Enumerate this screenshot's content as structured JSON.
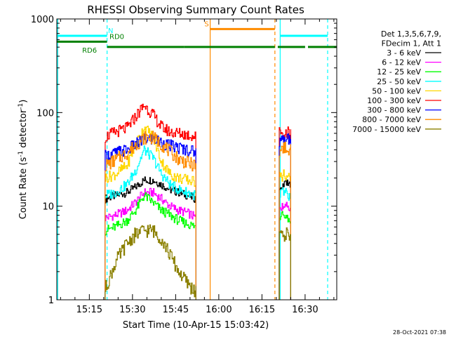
{
  "chart_data": {
    "type": "line",
    "title": "RHESSI Observing Summary Count Rates",
    "xlabel": "Start Time (10-Apr-15 15:03:42)",
    "ylabel": "Count Rate (s",
    "ylabel_sup1": "-1",
    "ylabel_mid": " detector",
    "ylabel_sup2": "-1",
    "ylabel_end": ")",
    "y_scale": "log",
    "xlim": [
      "15:03:42",
      "16:41:00"
    ],
    "ylim": [
      1,
      1000
    ],
    "x_ticks": [
      "15:15",
      "15:30",
      "15:45",
      "16:00",
      "16:15",
      "16:30"
    ],
    "y_ticks": [
      {
        "value": 1,
        "label": "1"
      },
      {
        "value": 10,
        "label": "10"
      },
      {
        "value": 100,
        "label": "100"
      },
      {
        "value": 1000,
        "label": "1000"
      }
    ],
    "legend": {
      "position": "right",
      "header": [
        "Det 1,3,5,6,7,9,",
        "FDecim 1, Att 1"
      ],
      "entries": [
        {
          "label": "3 - 6 keV",
          "color": "#000000"
        },
        {
          "label": "6 - 12 keV",
          "color": "#ff00ff"
        },
        {
          "label": "12 - 25 keV",
          "color": "#00ff00"
        },
        {
          "label": "25 - 50 keV",
          "color": "#00ffff"
        },
        {
          "label": "50 - 100 keV",
          "color": "#ffd700"
        },
        {
          "label": "100 - 300 keV",
          "color": "#ff0000"
        },
        {
          "label": "300 - 800 keV",
          "color": "#0000ff"
        },
        {
          "label": "800 - 7000 keV",
          "color": "#ff8c00"
        },
        {
          "label": "7000 - 15000 keV",
          "color": "#8b8000"
        }
      ]
    },
    "series": [
      {
        "name": "3 - 6 keV",
        "color": "#000000",
        "segments": [
          {
            "x": [
              "15:20:30",
              "15:24",
              "15:28",
              "15:31",
              "15:34",
              "15:37",
              "15:40",
              "15:43",
              "15:46",
              "15:49",
              "15:52"
            ],
            "y": [
              12,
              13,
              14,
              16,
              19,
              19,
              17,
              15,
              14,
              13,
              12
            ]
          },
          {
            "x": [
              "16:21",
              "16:22",
              "16:23",
              "16:24",
              "16:25"
            ],
            "y": [
              15,
              17,
              18,
              17,
              16
            ]
          }
        ]
      },
      {
        "name": "6 - 12 keV",
        "color": "#ff00ff",
        "segments": [
          {
            "x": [
              "15:20:30",
              "15:24",
              "15:28",
              "15:31",
              "15:34",
              "15:37",
              "15:40",
              "15:43",
              "15:46",
              "15:49",
              "15:52"
            ],
            "y": [
              7.5,
              8,
              9,
              11,
              14,
              14,
              12,
              10,
              9,
              8.5,
              7.5
            ]
          },
          {
            "x": [
              "16:21",
              "16:22",
              "16:23",
              "16:24",
              "16:25"
            ],
            "y": [
              9,
              10,
              11,
              10,
              9
            ]
          }
        ]
      },
      {
        "name": "12 - 25 keV",
        "color": "#00ff00",
        "segments": [
          {
            "x": [
              "15:20:30",
              "15:24",
              "15:28",
              "15:31",
              "15:34",
              "15:37",
              "15:40",
              "15:43",
              "15:46",
              "15:49",
              "15:52"
            ],
            "y": [
              5.5,
              6,
              7,
              9,
              13,
              11,
              9,
              8,
              7,
              6.5,
              6
            ]
          },
          {
            "x": [
              "16:21",
              "16:22",
              "16:23",
              "16:24",
              "16:25"
            ],
            "y": [
              7,
              8,
              8,
              7,
              7
            ]
          }
        ]
      },
      {
        "name": "25 - 50 keV",
        "color": "#00ffff",
        "segments": [
          {
            "x": [
              "15:20:30",
              "15:24",
              "15:28",
              "15:31",
              "15:34",
              "15:37",
              "15:40",
              "15:43",
              "15:46",
              "15:49",
              "15:52"
            ],
            "y": [
              13,
              14,
              17,
              24,
              40,
              33,
              22,
              17,
              15,
              14,
              13
            ]
          },
          {
            "x": [
              "16:21",
              "16:22",
              "16:23",
              "16:24",
              "16:25"
            ],
            "y": [
              13,
              14,
              14,
              13,
              12
            ]
          }
        ]
      },
      {
        "name": "50 - 100 keV",
        "color": "#ffd700",
        "segments": [
          {
            "x": [
              "15:20:30",
              "15:24",
              "15:28",
              "15:31",
              "15:34",
              "15:37",
              "15:40",
              "15:43",
              "15:46",
              "15:49",
              "15:52"
            ],
            "y": [
              20,
              22,
              27,
              45,
              70,
              55,
              30,
              22,
              20,
              19,
              18
            ]
          },
          {
            "x": [
              "16:21",
              "16:22",
              "16:23",
              "16:24",
              "16:25"
            ],
            "y": [
              20,
              21,
              22,
              21,
              20
            ]
          }
        ]
      },
      {
        "name": "100 - 300 keV",
        "color": "#ff0000",
        "segments": [
          {
            "x": [
              "15:20:30",
              "15:24",
              "15:28",
              "15:31",
              "15:34",
              "15:37",
              "15:40",
              "15:43",
              "15:46",
              "15:49",
              "15:52"
            ],
            "y": [
              55,
              62,
              68,
              90,
              120,
              95,
              70,
              62,
              60,
              58,
              55
            ]
          },
          {
            "x": [
              "16:21",
              "16:22",
              "16:23",
              "16:24",
              "16:25"
            ],
            "y": [
              60,
              62,
              62,
              61,
              60
            ]
          }
        ]
      },
      {
        "name": "300 - 800 keV",
        "color": "#0000ff",
        "segments": [
          {
            "x": [
              "15:20:30",
              "15:24",
              "15:28",
              "15:31",
              "15:34",
              "15:37",
              "15:40",
              "15:43",
              "15:46",
              "15:49",
              "15:52"
            ],
            "y": [
              34,
              37,
              40,
              45,
              52,
              52,
              48,
              44,
              42,
              40,
              38
            ]
          },
          {
            "x": [
              "16:21",
              "16:22",
              "16:23",
              "16:24",
              "16:25"
            ],
            "y": [
              50,
              52,
              53,
              52,
              50
            ]
          }
        ]
      },
      {
        "name": "800 - 7000 keV",
        "color": "#ff8c00",
        "segments": [
          {
            "x": [
              "15:20:30",
              "15:24",
              "15:28",
              "15:31",
              "15:34",
              "15:37",
              "15:40",
              "15:43",
              "15:46",
              "15:49",
              "15:52"
            ],
            "y": [
              27,
              31,
              37,
              45,
              54,
              54,
              46,
              38,
              32,
              29,
              27
            ]
          },
          {
            "x": [
              "16:21",
              "16:22",
              "16:23",
              "16:24",
              "16:25"
            ],
            "y": [
              40,
              42,
              42,
              41,
              40
            ]
          }
        ]
      },
      {
        "name": "7000 - 15000 keV",
        "color": "#8b8000",
        "segments": [
          {
            "x": [
              "15:20:30",
              "15:24",
              "15:28",
              "15:31",
              "15:34",
              "15:37",
              "15:40",
              "15:43",
              "15:46",
              "15:49",
              "15:52"
            ],
            "y": [
              1.3,
              2.5,
              4,
              5,
              5.5,
              5.5,
              4.5,
              3,
              2,
              1.5,
              1.2
            ]
          },
          {
            "x": [
              "16:21",
              "16:22",
              "16:23",
              "16:24",
              "16:25"
            ],
            "y": [
              4.5,
              5,
              5,
              5,
              4.5
            ]
          }
        ]
      }
    ],
    "vertical_lines": [
      {
        "x": "15:04:00",
        "color": "#00ffff",
        "style": "solid"
      },
      {
        "x": "15:21:10",
        "color": "#00ffff",
        "style": "dashed"
      },
      {
        "x": "15:57:00",
        "color": "#ff8c00",
        "style": "solid"
      },
      {
        "x": "16:19:30",
        "color": "#ff8c00",
        "style": "dashed"
      },
      {
        "x": "16:21:20",
        "color": "#00ffff",
        "style": "solid"
      },
      {
        "x": "16:37:50",
        "color": "#00ffff",
        "style": "dashed"
      }
    ],
    "flag_bars": [
      {
        "label": "N",
        "color": "#00ffff",
        "level": 660,
        "segments": [
          [
            "15:03:42",
            "15:21:10"
          ],
          [
            "16:21:20",
            "16:37:50"
          ]
        ],
        "label_at": "15:21:30"
      },
      {
        "label": "RD0",
        "color": "#008000",
        "level": 572,
        "segments": [
          [
            "15:03:42",
            "15:21:10"
          ]
        ],
        "label_at": "15:22:00"
      },
      {
        "label": "RD6",
        "color": "#008000",
        "level": 502,
        "segments": [
          [
            "15:21:10",
            "15:48:00"
          ],
          [
            "15:48:00",
            "16:19:30"
          ],
          [
            "16:20:30",
            "16:30:00"
          ],
          [
            "16:31:00",
            "16:41:00"
          ]
        ],
        "label_at": "15:12:30"
      },
      {
        "label": "S",
        "color": "#ff8c00",
        "level": 780,
        "segments": [
          [
            "15:57:00",
            "16:19:30"
          ]
        ],
        "label_at": "15:55:00"
      }
    ]
  },
  "footer": {
    "timestamp": "28-Oct-2021 07:38"
  }
}
